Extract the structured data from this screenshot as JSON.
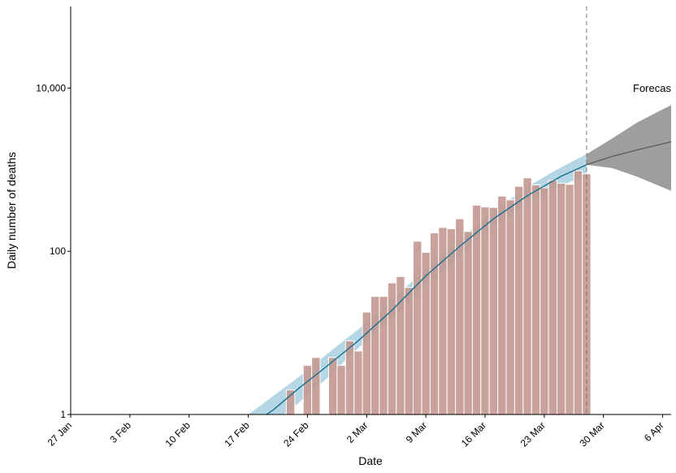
{
  "chart_data": {
    "type": "bar",
    "xlabel": "Date",
    "ylabel": "Daily number of deaths",
    "yscale": "log",
    "ylim": [
      1,
      100000
    ],
    "xlim": [
      "2020-01-27",
      "2020-04-07"
    ],
    "x_ticks": [
      {
        "date": "2020-01-27",
        "label": "27 Jan"
      },
      {
        "date": "2020-02-03",
        "label": "3 Feb"
      },
      {
        "date": "2020-02-10",
        "label": "10 Feb"
      },
      {
        "date": "2020-02-17",
        "label": "17 Feb"
      },
      {
        "date": "2020-02-24",
        "label": "24 Feb"
      },
      {
        "date": "2020-03-02",
        "label": "2 Mar"
      },
      {
        "date": "2020-03-09",
        "label": "9 Mar"
      },
      {
        "date": "2020-03-16",
        "label": "16 Mar"
      },
      {
        "date": "2020-03-23",
        "label": "23 Mar"
      },
      {
        "date": "2020-03-30",
        "label": "30 Mar"
      },
      {
        "date": "2020-04-06",
        "label": "6 Apr"
      }
    ],
    "y_ticks": [
      {
        "value": 1,
        "label": "1"
      },
      {
        "value": 100,
        "label": "100"
      },
      {
        "value": 10000,
        "label": "10,000"
      }
    ],
    "reported_deaths": {
      "dates": [
        "2020-02-22",
        "2020-02-23",
        "2020-02-24",
        "2020-02-25",
        "2020-02-26",
        "2020-02-27",
        "2020-02-28",
        "2020-02-29",
        "2020-03-01",
        "2020-03-02",
        "2020-03-03",
        "2020-03-04",
        "2020-03-05",
        "2020-03-06",
        "2020-03-07",
        "2020-03-08",
        "2020-03-09",
        "2020-03-10",
        "2020-03-11",
        "2020-03-12",
        "2020-03-13",
        "2020-03-14",
        "2020-03-15",
        "2020-03-16",
        "2020-03-17",
        "2020-03-18",
        "2020-03-19",
        "2020-03-20",
        "2020-03-21",
        "2020-03-22",
        "2020-03-23",
        "2020-03-24",
        "2020-03-25",
        "2020-03-26",
        "2020-03-27",
        "2020-03-28"
      ],
      "values": [
        2,
        0,
        4,
        5,
        0,
        5,
        4,
        8,
        6,
        18,
        28,
        28,
        41,
        49,
        36,
        133,
        97,
        168,
        196,
        189,
        250,
        175,
        368,
        349,
        345,
        475,
        427,
        627,
        793,
        651,
        601,
        743,
        683,
        662,
        969,
        889
      ]
    },
    "model_fit": {
      "dates": [
        "2020-02-17",
        "2020-02-20",
        "2020-02-23",
        "2020-02-26",
        "2020-03-01",
        "2020-03-05",
        "2020-03-09",
        "2020-03-13",
        "2020-03-17",
        "2020-03-21",
        "2020-03-25",
        "2020-03-28"
      ],
      "estimate": [
        0.7,
        1.15,
        2.1,
        3.7,
        8,
        19,
        50,
        115,
        250,
        480,
        830,
        1150
      ],
      "lower": [
        0.5,
        0.8,
        1.4,
        2.6,
        6.5,
        15,
        38,
        88,
        195,
        380,
        640,
        850
      ],
      "upper": [
        1.0,
        1.7,
        2.9,
        5.2,
        11,
        25,
        62,
        140,
        310,
        620,
        1070,
        1550
      ]
    },
    "forecast": {
      "label": "Forecas",
      "start_date": "2020-03-28",
      "dates": [
        "2020-03-28",
        "2020-03-31",
        "2020-04-03",
        "2020-04-07"
      ],
      "estimate": [
        1150,
        1450,
        1750,
        2200
      ],
      "lower": [
        1150,
        1050,
        820,
        550
      ],
      "upper": [
        1550,
        2400,
        3800,
        6200
      ]
    },
    "colors": {
      "bars": "#c49a92",
      "bar_border": "#ffffff",
      "fit_line": "#1a6e8e",
      "fit_band": "#a8cfe0",
      "forecast_line": "#555555",
      "forecast_band": "#9e9e9e",
      "forecast_marker": "#777777"
    },
    "grid": false
  }
}
